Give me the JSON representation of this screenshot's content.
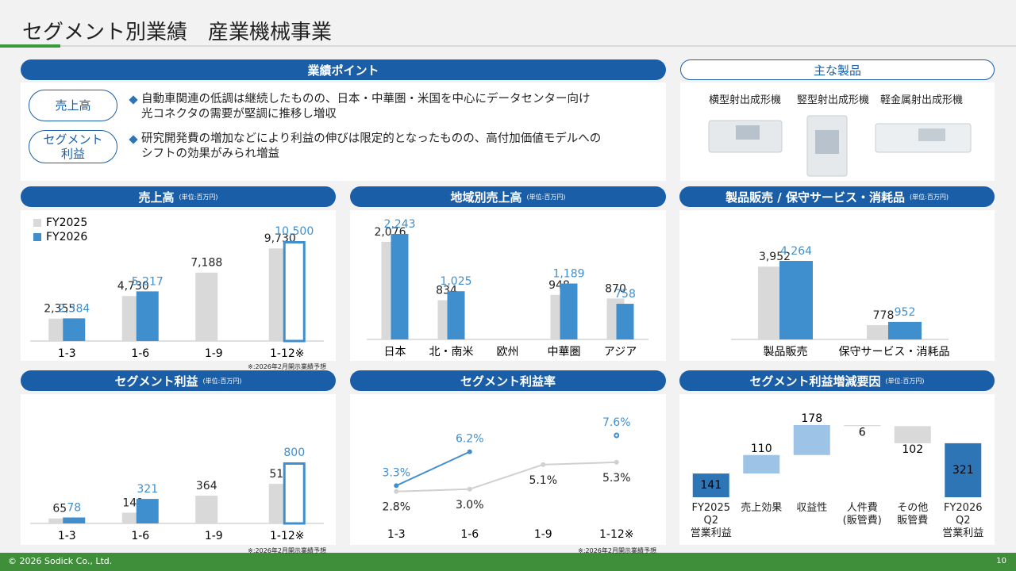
{
  "header": {
    "title": "セグメント別業績　産業機械事業"
  },
  "points": {
    "title": "業績ポイント",
    "items": [
      {
        "label": "売上高",
        "text": "自動車関連の低調は継続したものの、日本・中華圏・米国を中心にデータセンター向け\n光コネクタの需要が堅調に推移し増収"
      },
      {
        "label": "セグメント\n利益",
        "text": "研究開発費の増加などにより利益の伸びは限定的となったものの、高付加価値モデルへの\nシフトの効果がみられ増益"
      }
    ]
  },
  "products": {
    "title": "主な製品",
    "items": [
      "横型射出成形機",
      "竪型射出成形機",
      "軽金属射出成形機"
    ]
  },
  "footer": {
    "copyright": "© 2026 Sodick Co., Ltd.",
    "page": 10
  },
  "chart_data": [
    {
      "type": "bar",
      "title": "売上高",
      "unit": "(単位:百万円)",
      "legend": true,
      "note": "※:2026年2月開示業績予想",
      "categories": [
        "1-3",
        "1-6",
        "1-9",
        "1-12※"
      ],
      "series": [
        {
          "name": "FY2025",
          "color": "#d9d9d9",
          "label_color": "#222222",
          "values": [
            2355,
            4730,
            7188,
            9730
          ],
          "value_labels": [
            "2,355",
            "4,730",
            "7,188",
            "9,730"
          ]
        },
        {
          "name": "FY2026",
          "color": "#3f8fcf",
          "label_color": "#3f8fcf",
          "values": [
            2384,
            5217,
            null,
            10500
          ],
          "value_labels": [
            "2,384",
            "5,217",
            null,
            "10,500"
          ],
          "outlined": [
            false,
            false,
            false,
            true
          ]
        }
      ]
    },
    {
      "type": "bar",
      "title": "地域別売上高",
      "unit": "(単位:百万円)",
      "categories": [
        "日本",
        "北・南米",
        "欧州",
        "中華圏",
        "アジア"
      ],
      "series": [
        {
          "name": "FY2025",
          "color": "#d9d9d9",
          "label_color": "#222222",
          "values": [
            2076,
            834,
            null,
            948,
            870
          ],
          "value_labels": [
            "2,076",
            "834",
            null,
            "948",
            "870"
          ]
        },
        {
          "name": "FY2026",
          "color": "#3f8fcf",
          "label_color": "#3f8fcf",
          "values": [
            2243,
            1025,
            null,
            1189,
            758
          ],
          "value_labels": [
            "2,243",
            "1,025",
            null,
            "1,189",
            "758"
          ]
        }
      ]
    },
    {
      "type": "bar",
      "title": "製品販売 / 保守サービス・消耗品",
      "unit": "(単位:百万円)",
      "categories": [
        "製品販売",
        "保守サービス・消耗品"
      ],
      "series": [
        {
          "name": "FY2025",
          "color": "#d9d9d9",
          "label_color": "#222222",
          "values": [
            3952,
            778
          ],
          "value_labels": [
            "3,952",
            "778"
          ]
        },
        {
          "name": "FY2026",
          "color": "#3f8fcf",
          "label_color": "#3f8fcf",
          "values": [
            4264,
            952
          ],
          "value_labels": [
            "4,264",
            "952"
          ]
        }
      ]
    },
    {
      "type": "bar",
      "title": "セグメント利益",
      "unit": "(単位:百万円)",
      "note": "※:2026年2月開示業績予想",
      "categories": [
        "1-3",
        "1-6",
        "1-9",
        "1-12※"
      ],
      "series": [
        {
          "name": "FY2025",
          "color": "#d9d9d9",
          "label_color": "#222222",
          "values": [
            65,
            141,
            364,
            518
          ]
        },
        {
          "name": "FY2026",
          "color": "#3f8fcf",
          "label_color": "#3f8fcf",
          "values": [
            78,
            321,
            null,
            800
          ],
          "outlined": [
            false,
            false,
            false,
            true
          ]
        }
      ]
    },
    {
      "type": "line",
      "title": "セグメント利益率",
      "note": "※:2026年2月開示業績予想",
      "categories": [
        "1-3",
        "1-6",
        "1-9",
        "1-12※"
      ],
      "series": [
        {
          "name": "FY2025",
          "color": "#d0d0d0",
          "label_color": "#222222",
          "label_position": "below",
          "values": [
            2.8,
            3.0,
            5.1,
            5.3
          ],
          "value_labels": [
            "2.8%",
            "3.0%",
            "5.1%",
            "5.3%"
          ]
        },
        {
          "name": "FY2026",
          "color": "#3f8fcf",
          "label_color": "#3f8fcf",
          "label_position": "above",
          "values": [
            3.3,
            6.2,
            null,
            7.6
          ],
          "value_labels": [
            "3.3%",
            "6.2%",
            null,
            "7.6%"
          ],
          "outlined": [
            false,
            false,
            false,
            true
          ]
        }
      ]
    },
    {
      "type": "waterfall",
      "title": "セグメント利益増減要因",
      "unit": "(単位:百万円)",
      "categories": [
        "FY2025\nQ2\n営業利益",
        "売上効果",
        "収益性",
        "人件費\n(販管費)",
        "その他\n販管費",
        "FY2026\nQ2\n営業利益"
      ],
      "values": [
        141,
        110,
        178,
        -6,
        -102,
        321
      ],
      "value_labels": [
        "141",
        "110",
        "178",
        "6",
        "102",
        "321"
      ],
      "totals": [
        true,
        false,
        false,
        false,
        false,
        true
      ],
      "colors": {
        "total": "#2e75b6",
        "increase": "#9dc3e6",
        "decrease": "#d9d9d9"
      }
    }
  ]
}
